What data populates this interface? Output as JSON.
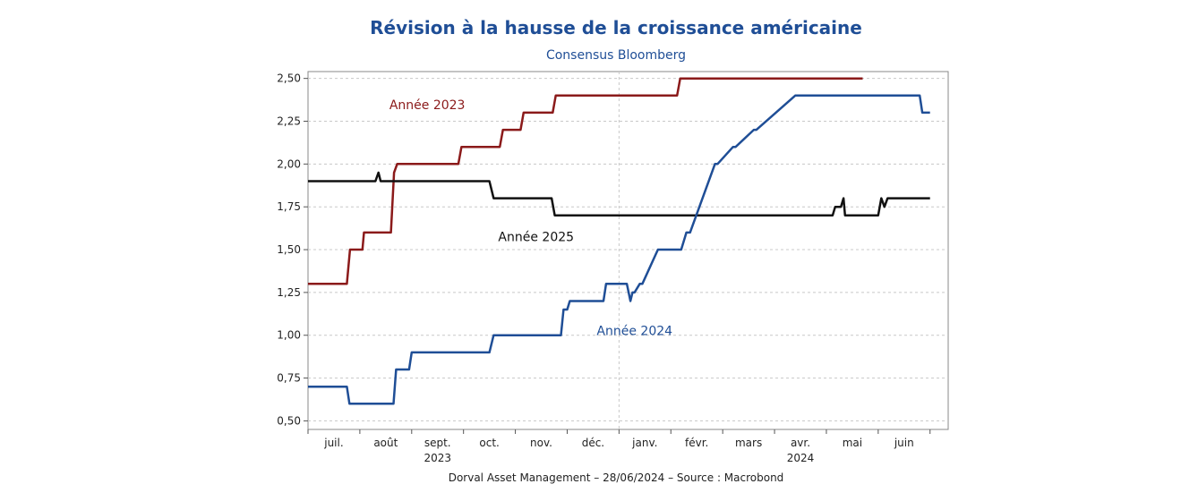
{
  "chart_data": {
    "type": "line",
    "title": "Révision à la hausse de la croissance américaine",
    "subtitle": "Consensus Bloomberg",
    "footer": "Dorval Asset Management – 28/06/2024 –   Source : Macrobond",
    "y_ticks": [
      "2,50",
      "2,25",
      "2,00",
      "1,75",
      "1,50",
      "1,25",
      "1,00",
      "0,75",
      "0,50"
    ],
    "ylim": [
      0.45,
      2.54
    ],
    "xlim": [
      0,
      12.35
    ],
    "month_labels": [
      "juil.",
      "août",
      "sept.",
      "oct.",
      "nov.",
      "déc.",
      "janv.",
      "févr.",
      "mars",
      "avr.",
      "mai",
      "juin"
    ],
    "year_labels": [
      {
        "label": "2023",
        "at": 2.5
      },
      {
        "label": "2024",
        "at": 9.5
      }
    ],
    "grid": true,
    "series": [
      {
        "name": "Année 2023",
        "color": "#8b1a1a",
        "label_at": {
          "x": 2.3,
          "y": 2.32
        },
        "x": [
          0,
          0.75,
          0.81,
          1.05,
          1.08,
          1.6,
          1.66,
          1.72,
          2.9,
          2.96,
          3.7,
          3.76,
          4.1,
          4.16,
          4.72,
          4.78,
          7.12,
          7.18,
          10.7
        ],
        "y": [
          1.3,
          1.3,
          1.5,
          1.5,
          1.6,
          1.6,
          1.95,
          2.0,
          2.0,
          2.1,
          2.1,
          2.2,
          2.2,
          2.3,
          2.3,
          2.4,
          2.4,
          2.5,
          2.5
        ]
      },
      {
        "name": "Année 2025",
        "color": "#111111",
        "label_at": {
          "x": 4.4,
          "y": 1.55
        },
        "x": [
          0,
          1.3,
          1.36,
          1.4,
          3.5,
          3.58,
          4.7,
          4.76,
          10.12,
          10.17,
          10.28,
          10.33,
          10.36,
          11.0,
          11.06,
          11.12,
          11.18,
          12.0
        ],
        "y": [
          1.9,
          1.9,
          1.95,
          1.9,
          1.9,
          1.8,
          1.8,
          1.7,
          1.7,
          1.75,
          1.75,
          1.8,
          1.7,
          1.7,
          1.8,
          1.75,
          1.8,
          1.8
        ]
      },
      {
        "name": "Année 2024",
        "color": "#1f4e96",
        "label_at": {
          "x": 6.3,
          "y": 1.0
        },
        "x": [
          0,
          0.75,
          0.8,
          1.65,
          1.7,
          1.95,
          2.0,
          3.5,
          3.58,
          4.88,
          4.93,
          5.0,
          5.05,
          5.7,
          5.75,
          6.15,
          6.22,
          6.26,
          6.3,
          6.4,
          6.45,
          6.75,
          6.8,
          7.2,
          7.25,
          7.3,
          7.37,
          7.85,
          7.9,
          8.2,
          8.25,
          8.6,
          8.65,
          9.4,
          9.45,
          11.8,
          11.85,
          12.0
        ],
        "y": [
          0.7,
          0.7,
          0.6,
          0.6,
          0.8,
          0.8,
          0.9,
          0.9,
          1.0,
          1.0,
          1.15,
          1.15,
          1.2,
          1.2,
          1.3,
          1.3,
          1.2,
          1.25,
          1.25,
          1.3,
          1.3,
          1.5,
          1.5,
          1.5,
          1.55,
          1.6,
          1.6,
          2.0,
          2.0,
          2.1,
          2.1,
          2.2,
          2.2,
          2.4,
          2.4,
          2.4,
          2.3,
          2.3
        ]
      }
    ]
  }
}
